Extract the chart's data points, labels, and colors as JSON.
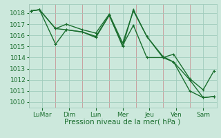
{
  "background_color": "#cce8dc",
  "grid_color": "#a0ccbc",
  "line_color": "#1a6e2e",
  "sep_color": "#c8a0a0",
  "xlabel": "Pression niveau de la mer( hPa )",
  "ylim": [
    1009.5,
    1018.8
  ],
  "xlim": [
    0.0,
    7.0
  ],
  "yticks": [
    1010,
    1011,
    1012,
    1013,
    1014,
    1015,
    1016,
    1017,
    1018
  ],
  "xtick_labels": [
    "LuMar",
    "Dim",
    "Lun",
    "Mer",
    "Jeu",
    "Ven",
    "Sam"
  ],
  "xtick_positions": [
    0.5,
    1.5,
    2.5,
    3.5,
    4.5,
    5.5,
    6.5
  ],
  "day_sep_positions": [
    0.0,
    1.0,
    2.0,
    3.0,
    4.0,
    5.0,
    6.0,
    7.0
  ],
  "series": [
    {
      "x": [
        0.1,
        0.4,
        1.0,
        1.4,
        2.0,
        2.5,
        3.0,
        3.5,
        3.9,
        4.4,
        5.0,
        5.4,
        6.0,
        6.5,
        6.9
      ],
      "y": [
        1018.2,
        1018.3,
        1016.6,
        1017.0,
        1016.5,
        1016.2,
        1017.9,
        1015.3,
        1018.2,
        1015.9,
        1014.0,
        1014.3,
        1012.1,
        1011.1,
        1012.8
      ]
    },
    {
      "x": [
        0.1,
        0.4,
        1.0,
        1.4,
        2.0,
        2.5,
        3.0,
        3.5,
        3.9,
        4.4,
        5.0,
        5.4,
        6.0,
        6.5,
        6.9
      ],
      "y": [
        1018.2,
        1018.3,
        1016.6,
        1016.5,
        1016.3,
        1015.9,
        1017.8,
        1015.0,
        1018.3,
        1015.9,
        1014.1,
        1013.6,
        1012.0,
        1010.4,
        1010.5
      ]
    },
    {
      "x": [
        0.1,
        0.4,
        1.0,
        1.4,
        2.0,
        2.5,
        3.0,
        3.5,
        3.9,
        4.4,
        5.0,
        5.4,
        6.0,
        6.5,
        6.9
      ],
      "y": [
        1018.2,
        1018.3,
        1015.2,
        1016.5,
        1016.3,
        1015.8,
        1017.8,
        1015.1,
        1016.9,
        1014.0,
        1014.0,
        1013.6,
        1011.0,
        1010.4,
        1010.5
      ]
    }
  ],
  "marker": "+",
  "markersize": 3.5,
  "linewidth": 1.0,
  "tick_fontsize": 6.5,
  "xlabel_fontsize": 7.5
}
